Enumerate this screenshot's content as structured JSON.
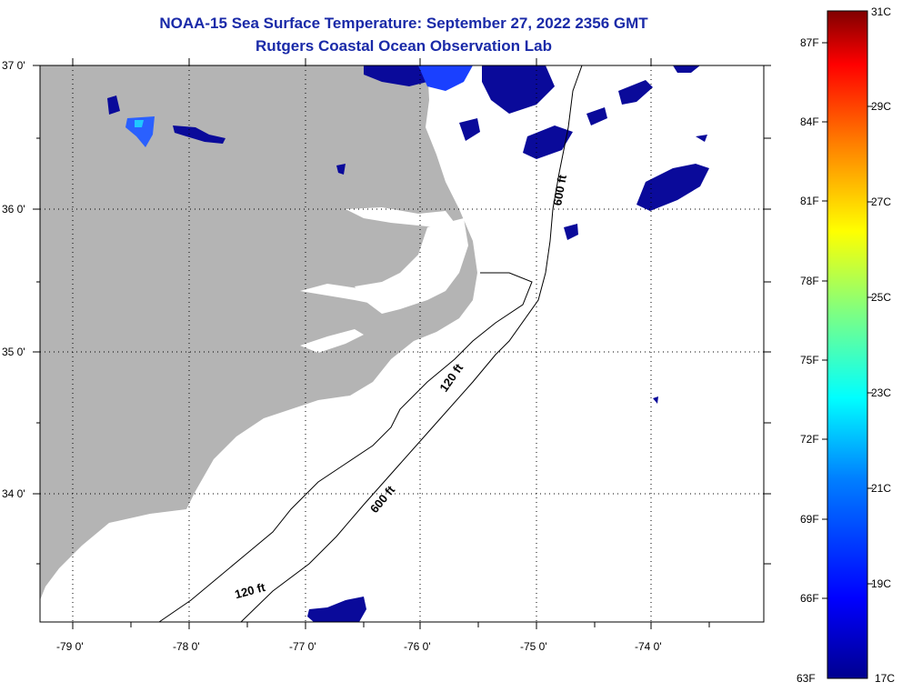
{
  "header": {
    "title": "NOAA-15 Sea Surface Temperature:  September 27, 2022 2356 GMT",
    "subtitle": "Rutgers Coastal Ocean Observation Lab"
  },
  "map": {
    "lat_labels": [
      "37 0'",
      "36 0'",
      "35 0'",
      "34 0'"
    ],
    "lon_labels": [
      "-79 0'",
      "-78 0'",
      "-77 0'",
      "-76 0'",
      "-75 0'",
      "-74 0'"
    ],
    "contour_labels": [
      "600 ft",
      "120 ft",
      "600 ft",
      "120 ft"
    ],
    "land_color": "#b4b4b4",
    "cloud_color": "#ffffff"
  },
  "colorbar": {
    "fahrenheit_labels": [
      "87F",
      "84F",
      "81F",
      "78F",
      "75F",
      "72F",
      "69F",
      "66F",
      "63F"
    ],
    "celsius_labels": [
      "31C",
      "29C",
      "27C",
      "25C",
      "23C",
      "21C",
      "19C",
      "17C"
    ],
    "colors": [
      "#800000",
      "#ff0000",
      "#ff8000",
      "#ffff00",
      "#80ff80",
      "#00ffff",
      "#0080ff",
      "#0000ff",
      "#00008f"
    ]
  }
}
